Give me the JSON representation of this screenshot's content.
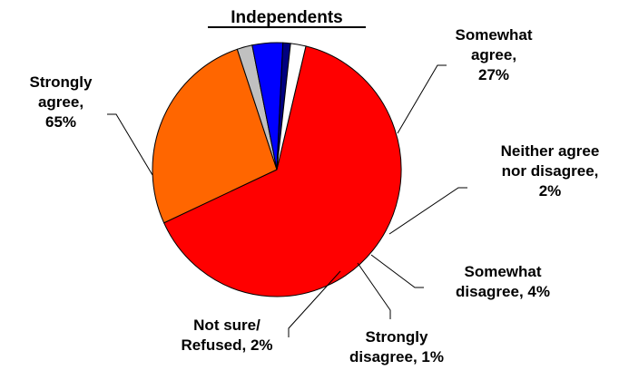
{
  "chart_data": {
    "type": "pie",
    "title": "Independents",
    "slices": [
      {
        "label": "Strongly agree",
        "value": 65,
        "color": "#ff0000"
      },
      {
        "label": "Somewhat agree",
        "value": 27,
        "color": "#ff6600"
      },
      {
        "label": "Neither agree nor disagree",
        "value": 2,
        "color": "#c0c0c0"
      },
      {
        "label": "Somewhat disagree",
        "value": 4,
        "color": "#0000ff"
      },
      {
        "label": "Strongly disagree",
        "value": 1,
        "color": "#000080"
      },
      {
        "label": "Not sure/ Refused",
        "value": 2,
        "color": "#ffffff"
      }
    ],
    "labels": [
      [
        "Strongly",
        "agree,",
        "65%"
      ],
      [
        "Somewhat",
        "agree,",
        "27%"
      ],
      [
        "Neither agree",
        "nor disagree,",
        "2%"
      ],
      [
        "Somewhat",
        "disagree, 4%"
      ],
      [
        "Strongly",
        "disagree, 1%"
      ],
      [
        "Not sure/",
        "Refused, 2%"
      ]
    ],
    "legend": "none"
  }
}
